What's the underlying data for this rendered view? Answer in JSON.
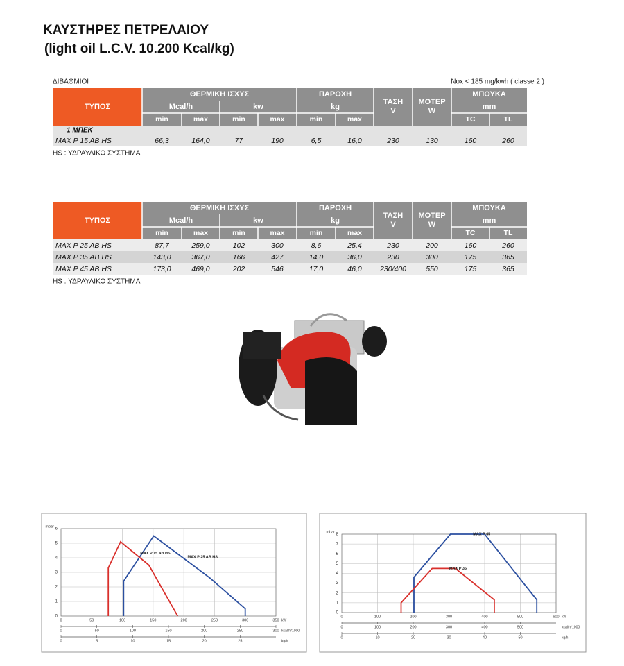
{
  "header": {
    "title": "ΚΑΥΣΤΗΡΕΣ ΠΕΤΡΕΛΑΙΟΥ",
    "subtitle": "(light oil L.C.V. 10.200 Kcal/kg)"
  },
  "table1": {
    "caption": "ΔΙΒΑΘΜΙΟΙ",
    "nox": "Nox  <  185 mg/kwh ( classe 2 )",
    "header": {
      "type": "ΤΥΠΟΣ",
      "power": "ΘΕΡΜΙΚΗ   ΙΣΧΥΣ",
      "mcal": "Mcal/h",
      "kw": "kw",
      "flow": "ΠΑΡΟΧΗ",
      "kg": "kg",
      "voltage": "ΤΑΣΗ",
      "v": "V",
      "motor": "ΜΟΤΕΡ",
      "w": "W",
      "nozzle": "ΜΠΟΥΚΑ",
      "mm": "mm",
      "sub": [
        "min",
        "max",
        "min",
        "max",
        "min",
        "max",
        "TC",
        "TL"
      ]
    },
    "group": "1 ΜΠΕΚ",
    "rows": [
      [
        "MAX  P 15 AB HS",
        "66,3",
        "164,0",
        "77",
        "190",
        "6,5",
        "16,0",
        "230",
        "130",
        "160",
        "260"
      ]
    ],
    "note": "HS : ΥΔΡΑΥΛΙΚΟ ΣΥΣΤΗΜΑ"
  },
  "table2": {
    "header": {
      "type": "ΤΥΠΟΣ",
      "power": "ΘΕΡΜΙΚΗ   ΙΣΧΥΣ",
      "mcal": "Mcal/h",
      "kw": "kw",
      "flow": "ΠΑΡΟΧΗ",
      "kg": "kg",
      "voltage": "ΤΑΣΗ",
      "v": "V",
      "motor": "ΜΟΤΕΡ",
      "w": "W",
      "nozzle": "ΜΠΟΥΚΑ",
      "mm": "mm",
      "sub": [
        "min",
        "max",
        "min",
        "max",
        "min",
        "max",
        "TC",
        "TL"
      ]
    },
    "rows": [
      [
        "MAX  P 25 AB HS",
        "87,7",
        "259,0",
        "102",
        "300",
        "8,6",
        "25,4",
        "230",
        "200",
        "160",
        "260"
      ],
      [
        "MAX  P 35 AB HS",
        "143,0",
        "367,0",
        "166",
        "427",
        "14,0",
        "36,0",
        "230",
        "300",
        "175",
        "365"
      ],
      [
        "MAX  P 45 AB HS",
        "173,0",
        "469,0",
        "202",
        "546",
        "17,0",
        "46,0",
        "230/400",
        "550",
        "175",
        "365"
      ]
    ],
    "note": "HS : ΥΔΡΑΥΛΙΚΟ ΣΥΣΤΗΜΑ"
  },
  "charts": [
    {
      "type": "line",
      "ylabel": "mbar",
      "ylim": [
        0,
        6
      ],
      "yticks": [
        0,
        1,
        2,
        3,
        4,
        5,
        6
      ],
      "grid": true,
      "xaxes": [
        {
          "unit": "kW",
          "lim": [
            0,
            350
          ],
          "ticks": [
            0,
            50,
            100,
            150,
            200,
            250,
            300,
            350
          ]
        },
        {
          "unit": "kcal/h*1000",
          "lim": [
            0,
            300
          ],
          "ticks": [
            0,
            50,
            100,
            150,
            200,
            250,
            300
          ]
        },
        {
          "unit": "kg/h",
          "lim": [
            0,
            30
          ],
          "ticks": [
            0,
            5,
            10,
            15,
            20,
            25
          ]
        }
      ],
      "series": [
        {
          "name": "MAX P 25 AB HS",
          "color": "#2b4fa0",
          "x": [
            102,
            102,
            151,
            243,
            300,
            300
          ],
          "values": [
            0,
            2.4,
            5.5,
            2.6,
            0.5,
            0
          ]
        },
        {
          "name": "MAX P 15 AB HS",
          "color": "#d9302c",
          "x": [
            77,
            77,
            97,
            143,
            190
          ],
          "values": [
            0,
            3.3,
            5.1,
            3.5,
            0
          ]
        }
      ]
    },
    {
      "type": "line",
      "ylabel": "mbar",
      "ylim": [
        0,
        8
      ],
      "yticks": [
        0,
        1,
        2,
        3,
        4,
        5,
        6,
        7,
        8
      ],
      "grid": true,
      "xaxes": [
        {
          "unit": "kW",
          "lim": [
            0,
            600
          ],
          "ticks": [
            0,
            100,
            200,
            300,
            400,
            500,
            600
          ]
        },
        {
          "unit": "kcal/h*1000",
          "lim": [
            0,
            600
          ],
          "ticks": [
            0,
            100,
            200,
            300,
            400,
            500
          ]
        },
        {
          "unit": "kg/h",
          "lim": [
            0,
            60
          ],
          "ticks": [
            0,
            10,
            20,
            30,
            40,
            50
          ]
        }
      ],
      "series": [
        {
          "name": "MAX P 45",
          "color": "#2b4fa0",
          "x": [
            202,
            202,
            304,
            400,
            546,
            546
          ],
          "values": [
            0,
            3.6,
            8,
            8,
            1.3,
            0
          ]
        },
        {
          "name": "MAX P 35",
          "color": "#d9302c",
          "x": [
            166,
            166,
            253,
            318,
            427,
            427
          ],
          "values": [
            0,
            1,
            4.5,
            4.5,
            1.3,
            0
          ]
        }
      ]
    }
  ]
}
